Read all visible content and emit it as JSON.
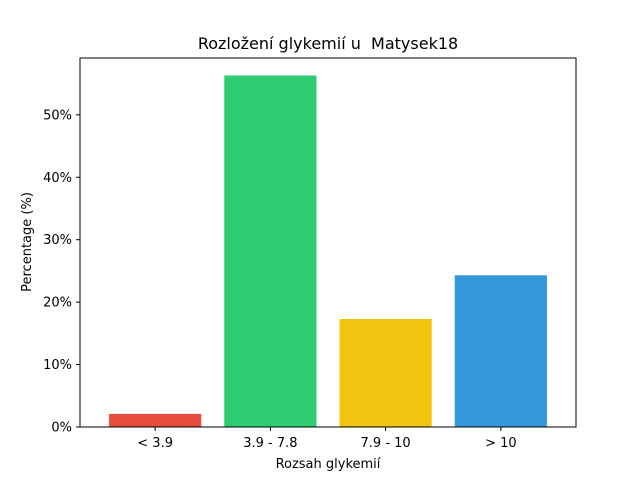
{
  "chart_data": {
    "type": "bar",
    "title": "Rozložení glykemií u  Matysek18",
    "xlabel": "Rozsah glykemií",
    "ylabel": "Percentage (%)",
    "categories": [
      "< 3.9",
      "3.9 - 7.8",
      "7.9 - 10",
      "> 10"
    ],
    "values": [
      2.1,
      56.3,
      17.3,
      24.3
    ],
    "colors": [
      "#e74c3c",
      "#2ecc71",
      "#f1c40f",
      "#3498db"
    ],
    "ylim": [
      0,
      59.1
    ],
    "yticks": [
      0,
      10,
      20,
      30,
      40,
      50
    ],
    "ytick_labels": [
      "0%",
      "10%",
      "20%",
      "30%",
      "40%",
      "50%"
    ],
    "grid": false,
    "legend": false
  }
}
